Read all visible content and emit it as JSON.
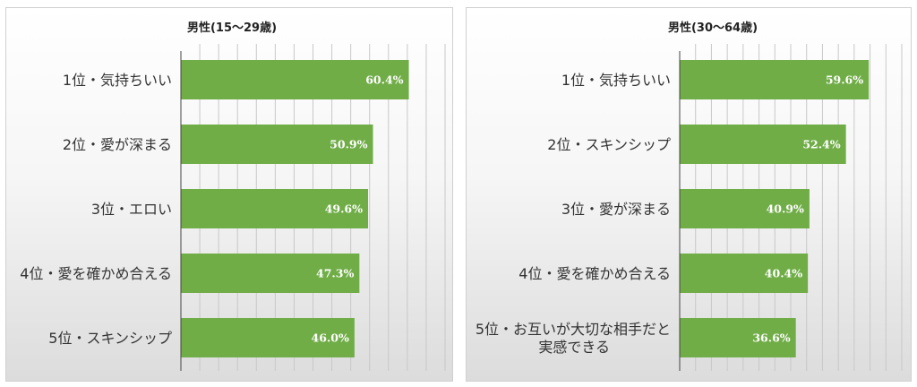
{
  "chart_data": [
    {
      "type": "bar",
      "orientation": "horizontal",
      "title": "男性(15～29歳)",
      "categories": [
        "1位・気持ちいい",
        "2位・愛が深まる",
        "3位・エロい",
        "4位・愛を確かめ合える",
        "5位・スキンシップ"
      ],
      "values": [
        60.4,
        50.9,
        49.6,
        47.3,
        46.0
      ],
      "value_labels": [
        "60.4%",
        "50.9%",
        "49.6%",
        "47.3%",
        "46.0%"
      ],
      "xlim": [
        0,
        70
      ],
      "grid": true,
      "bar_color": "#70ad47"
    },
    {
      "type": "bar",
      "orientation": "horizontal",
      "title": "男性(30～64歳)",
      "categories": [
        "1位・気持ちいい",
        "2位・スキンシップ",
        "3位・愛が深まる",
        "4位・愛を確かめ合える",
        "5位・お互いが大切な相手だと実感できる"
      ],
      "category_lines": [
        [
          "1位・気持ちいい"
        ],
        [
          "2位・スキンシップ"
        ],
        [
          "3位・愛が深まる"
        ],
        [
          "4位・愛を確かめ合える"
        ],
        [
          "5位・お互いが大切な相手だと",
          "実感できる"
        ]
      ],
      "values": [
        59.6,
        52.4,
        40.9,
        40.4,
        36.6
      ],
      "value_labels": [
        "59.6%",
        "52.4%",
        "40.9%",
        "40.4%",
        "36.6%"
      ],
      "xlim": [
        0,
        70
      ],
      "grid": true,
      "bar_color": "#70ad47"
    }
  ]
}
